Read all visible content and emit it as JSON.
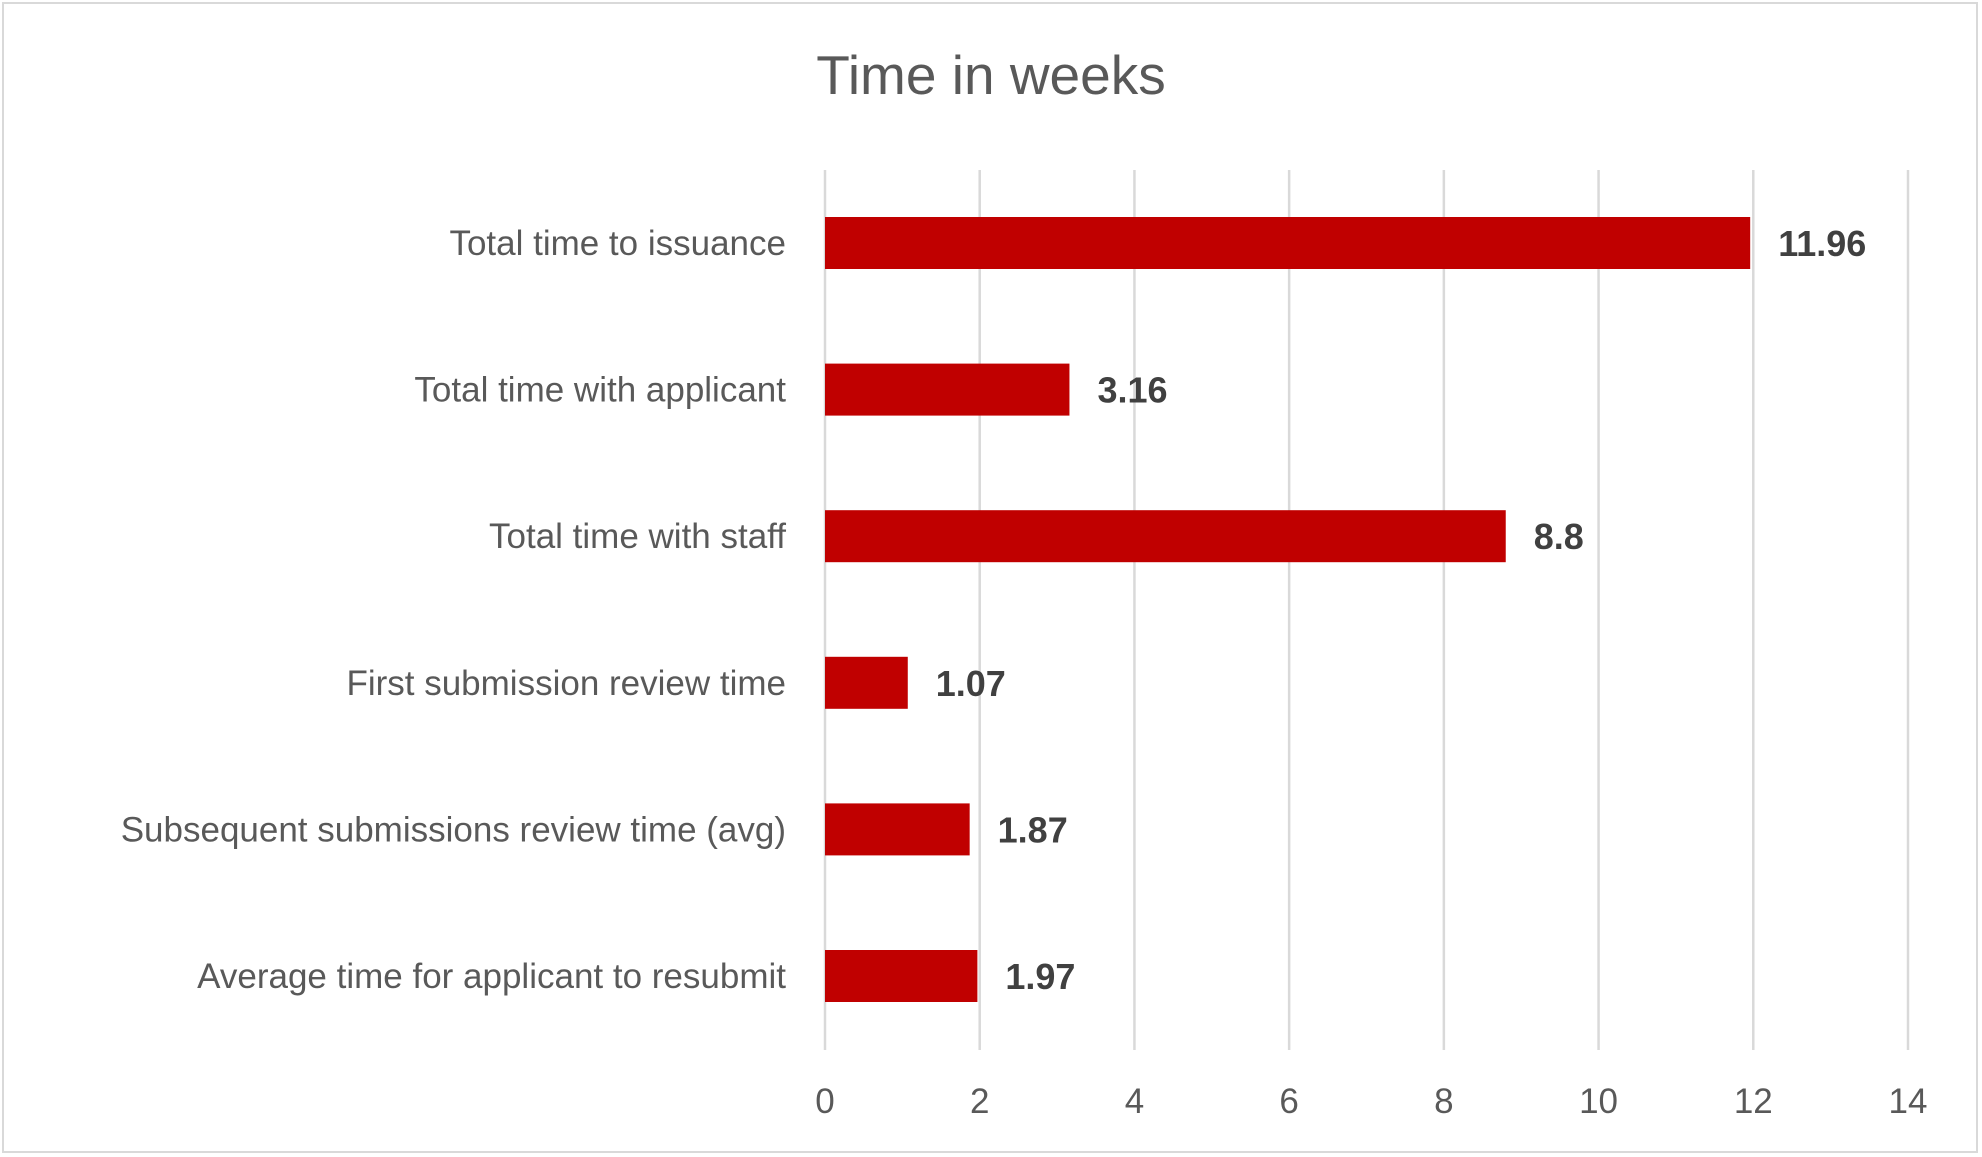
{
  "chart_data": {
    "type": "bar",
    "orientation": "horizontal",
    "title": "Time in weeks",
    "xlabel": "",
    "ylabel": "",
    "categories": [
      "Total time to issuance",
      "Total time with applicant",
      "Total time with staff",
      "First submission review time",
      "Subsequent submissions review time (avg)",
      "Average time for applicant to resubmit"
    ],
    "values": [
      11.96,
      3.16,
      8.8,
      1.07,
      1.87,
      1.97
    ],
    "data_labels": [
      "11.96",
      "3.16",
      "8.8",
      "1.07",
      "1.87",
      "1.97"
    ],
    "xlim": [
      0,
      14
    ],
    "ticks": [
      0,
      2,
      4,
      6,
      8,
      10,
      12,
      14
    ],
    "tick_labels": [
      "0",
      "2",
      "4",
      "6",
      "8",
      "10",
      "12",
      "14"
    ],
    "grid": "vertical",
    "legend": "none",
    "bar_color": "#c00000"
  }
}
